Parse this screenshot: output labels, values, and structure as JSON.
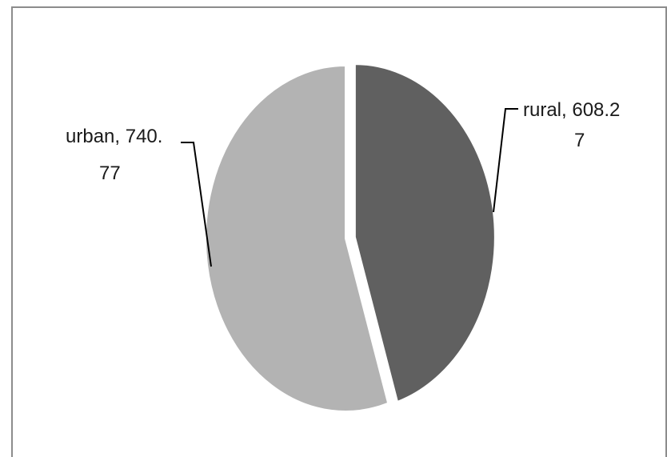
{
  "chart_data": {
    "type": "pie",
    "labels": [
      "rural",
      "urban"
    ],
    "values": [
      608.27,
      740.77
    ],
    "colors": [
      "#606060",
      "#b3b3b3"
    ],
    "data_labels": [
      {
        "category": "rural",
        "line1": "rural, 608.2",
        "line2": "7"
      },
      {
        "category": "urban",
        "line1": "urban, 740.",
        "line2": "77"
      }
    ],
    "exploded": [
      "rural"
    ],
    "legend": "none",
    "title": ""
  }
}
